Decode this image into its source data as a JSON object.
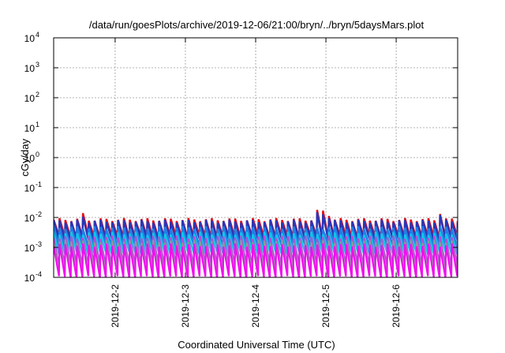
{
  "chart_data": {
    "type": "line",
    "title": "/data/run/goesPlots/archive/2019-12-06/21:00/bryn/../bryn/5daysMars.plot",
    "xlabel": "Coordinated Universal Time (UTC)",
    "ylabel": "cGy/day",
    "yscale": "log",
    "ylim": [
      0.0001,
      10000
    ],
    "xlim": [
      "2019-12-01 03:00",
      "2019-12-06 21:00"
    ],
    "grid": true,
    "legend": "none",
    "yticks": [
      {
        "base": "10",
        "exp": "4"
      },
      {
        "base": "10",
        "exp": "3"
      },
      {
        "base": "10",
        "exp": "2"
      },
      {
        "base": "10",
        "exp": "1"
      },
      {
        "base": "10",
        "exp": "0"
      },
      {
        "base": "10",
        "exp": "-1"
      },
      {
        "base": "10",
        "exp": "-2"
      },
      {
        "base": "10",
        "exp": "-3"
      },
      {
        "base": "10",
        "exp": "-4"
      }
    ],
    "xticks": [
      "2019-12-2",
      "2019-12-3",
      "2019-12-4",
      "2019-12-5",
      "2019-12-6"
    ],
    "sawtooth_period_hours": 2,
    "series": [
      {
        "color": "#e0101a",
        "peak": 0.0085,
        "trough": 0.0022,
        "width": 2.4,
        "boosts": [
          [
            "2019-12-01 13:00",
            1.5
          ],
          [
            "2019-12-04 22:00",
            1.9
          ],
          [
            "2019-12-05 01:00",
            1.5
          ],
          [
            "2019-12-06 15:00",
            1.7
          ]
        ]
      },
      {
        "color": "#2a36b8",
        "peak": 0.0075,
        "trough": 0.0018,
        "width": 2.4,
        "boosts": [
          [
            "2019-12-01 13:00",
            1.4
          ],
          [
            "2019-12-04 22:00",
            1.8
          ],
          [
            "2019-12-05 01:00",
            1.4
          ],
          [
            "2019-12-06 15:00",
            1.6
          ]
        ]
      },
      {
        "color": "#1f7fe6",
        "peak": 0.0046,
        "trough": 0.0011,
        "width": 2.4,
        "boosts": []
      },
      {
        "color": "#10c4e8",
        "peak": 0.003,
        "trough": 0.00065,
        "width": 2.4,
        "boosts": []
      },
      {
        "color": "#b24fd6",
        "peak": 0.0022,
        "trough": 0.00025,
        "width": 2.2,
        "boosts": []
      },
      {
        "color": "#8f9a9a",
        "peak": 0.0016,
        "trough": 0.00016,
        "width": 1.8,
        "boosts": []
      },
      {
        "color": "#f010ee",
        "peak": 0.0012,
        "trough": 0.0001,
        "width": 2.2,
        "boosts": []
      }
    ]
  }
}
